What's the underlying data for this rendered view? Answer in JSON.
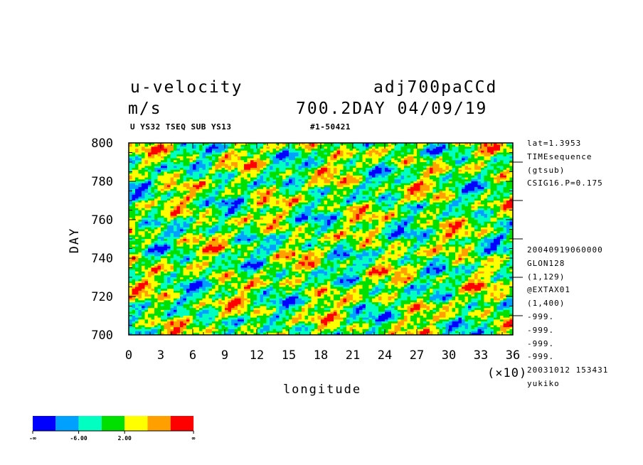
{
  "header": {
    "title_left": "u-velocity",
    "title_right": "adj700paCCd",
    "units": "m/s",
    "day_date": "700.2DAY 04/09/19",
    "subtitle_left": "U YS32 TSEQ SUB YS13",
    "subtitle_right": "#1-50421"
  },
  "side_info": {
    "top": [
      "lat=1.3953",
      "TIMEsequence",
      "(gtsub)",
      "CSIG16.P=0.175"
    ],
    "bottom": [
      "20040919060000",
      "GLON128",
      "(1,129)",
      "@EXTAX01",
      "(1,400)",
      "-999.",
      "-999.",
      "-999.",
      "-999.",
      "20031012 153431",
      "yukiko"
    ]
  },
  "chart_data": {
    "type": "heatmap",
    "title": "u-velocity",
    "xlabel": "longitude",
    "ylabel": "DAY",
    "x_multiplier_label": "(×10)",
    "xlim": [
      0,
      36
    ],
    "ylim": [
      700,
      800
    ],
    "x_ticks": [
      "0",
      "3",
      "6",
      "9",
      "12",
      "15",
      "18",
      "21",
      "24",
      "27",
      "30",
      "33",
      "36"
    ],
    "y_ticks": [
      "700",
      "720",
      "740",
      "760",
      "780",
      "800"
    ],
    "colorbar": {
      "colors": [
        "#0000ff",
        "#00a0ff",
        "#00ffc0",
        "#00e000",
        "#ffff00",
        "#ffa000",
        "#ff0000"
      ],
      "labels": [
        "-∞",
        "-6.00",
        "2.00",
        "∞"
      ]
    }
  }
}
